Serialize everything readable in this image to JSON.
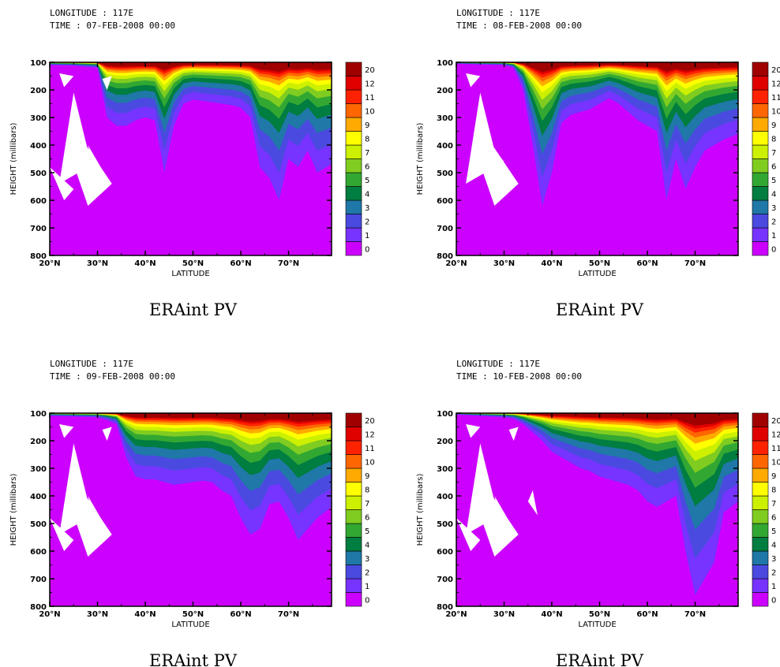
{
  "chart_data": [
    {
      "type": "heatmap",
      "header_line1": "LONGITUDE : 117E",
      "header_line2": "TIME : 07-FEB-2008 00:00",
      "title": "ERAint PV",
      "xlabel": "LATITUDE",
      "ylabel": "HEIGHT (millibars)",
      "x_ticks": [
        "20°N",
        "30°N",
        "40°N",
        "50°N",
        "60°N",
        "70°N"
      ],
      "y_ticks": [
        "100",
        "200",
        "300",
        "400",
        "500",
        "600",
        "700",
        "800"
      ],
      "xlim": [
        20,
        79
      ],
      "ylim": [
        800,
        100
      ],
      "color_levels": [
        "0",
        "1",
        "2",
        "3",
        "4",
        "5",
        "6",
        "7",
        "8",
        "9",
        "10",
        "11",
        "12",
        "20"
      ],
      "tropopause_pressure_by_latitude": {
        "latitude": [
          20,
          25,
          30,
          32,
          34,
          36,
          38,
          40,
          42,
          44,
          46,
          48,
          50,
          52,
          54,
          56,
          58,
          60,
          62,
          64,
          66,
          68,
          70,
          72,
          74,
          76,
          79
        ],
        "pressure_1pvu": [
          110,
          112,
          120,
          300,
          330,
          330,
          310,
          300,
          310,
          500,
          330,
          250,
          235,
          240,
          245,
          250,
          255,
          265,
          300,
          480,
          520,
          600,
          450,
          480,
          420,
          500,
          470
        ]
      },
      "blank_regions_count": 6
    },
    {
      "type": "heatmap",
      "header_line1": "LONGITUDE : 117E",
      "header_line2": "TIME : 08-FEB-2008 00:00",
      "title": "ERAint PV",
      "xlabel": "LATITUDE",
      "ylabel": "HEIGHT (millibars)",
      "x_ticks": [
        "20°N",
        "30°N",
        "40°N",
        "50°N",
        "60°N",
        "70°N"
      ],
      "y_ticks": [
        "100",
        "200",
        "300",
        "400",
        "500",
        "600",
        "700",
        "800"
      ],
      "xlim": [
        20,
        79
      ],
      "ylim": [
        800,
        100
      ],
      "color_levels": [
        "0",
        "1",
        "2",
        "3",
        "4",
        "5",
        "6",
        "7",
        "8",
        "9",
        "10",
        "11",
        "12",
        "20"
      ],
      "tropopause_pressure_by_latitude": {
        "latitude": [
          20,
          25,
          30,
          32,
          34,
          36,
          38,
          40,
          42,
          44,
          46,
          48,
          50,
          52,
          54,
          56,
          58,
          60,
          62,
          64,
          66,
          68,
          70,
          72,
          74,
          76,
          79
        ],
        "pressure_1pvu": [
          105,
          108,
          110,
          120,
          200,
          400,
          620,
          500,
          320,
          290,
          280,
          270,
          250,
          230,
          250,
          280,
          310,
          330,
          350,
          600,
          450,
          560,
          480,
          420,
          400,
          380,
          360
        ]
      },
      "blank_regions_count": 3
    },
    {
      "type": "heatmap",
      "header_line1": "LONGITUDE : 117E",
      "header_line2": "TIME : 09-FEB-2008 00:00",
      "title": "ERAint PV",
      "xlabel": "LATITUDE",
      "ylabel": "HEIGHT (millibars)",
      "x_ticks": [
        "20°N",
        "30°N",
        "40°N",
        "50°N",
        "60°N",
        "70°N"
      ],
      "y_ticks": [
        "100",
        "200",
        "300",
        "400",
        "500",
        "600",
        "700",
        "800"
      ],
      "xlim": [
        20,
        79
      ],
      "ylim": [
        800,
        100
      ],
      "color_levels": [
        "0",
        "1",
        "2",
        "3",
        "4",
        "5",
        "6",
        "7",
        "8",
        "9",
        "10",
        "11",
        "12",
        "20"
      ],
      "tropopause_pressure_by_latitude": {
        "latitude": [
          20,
          25,
          30,
          32,
          34,
          36,
          38,
          40,
          42,
          44,
          46,
          48,
          50,
          52,
          54,
          56,
          58,
          60,
          62,
          64,
          66,
          68,
          70,
          72,
          74,
          76,
          79
        ],
        "pressure_1pvu": [
          110,
          112,
          115,
          125,
          140,
          260,
          330,
          340,
          340,
          350,
          360,
          355,
          350,
          345,
          350,
          380,
          400,
          480,
          540,
          520,
          430,
          420,
          480,
          560,
          520,
          480,
          440
        ]
      },
      "blank_regions_count": 6
    },
    {
      "type": "heatmap",
      "header_line1": "LONGITUDE : 117E",
      "header_line2": "TIME : 10-FEB-2008 00:00",
      "title": "ERAint PV",
      "xlabel": "LATITUDE",
      "ylabel": "HEIGHT (millibars)",
      "x_ticks": [
        "20°N",
        "30°N",
        "40°N",
        "50°N",
        "60°N",
        "70°N"
      ],
      "y_ticks": [
        "100",
        "200",
        "300",
        "400",
        "500",
        "600",
        "700",
        "800"
      ],
      "xlim": [
        20,
        79
      ],
      "ylim": [
        800,
        100
      ],
      "color_levels": [
        "0",
        "1",
        "2",
        "3",
        "4",
        "5",
        "6",
        "7",
        "8",
        "9",
        "10",
        "11",
        "12",
        "20"
      ],
      "tropopause_pressure_by_latitude": {
        "latitude": [
          20,
          25,
          30,
          32,
          34,
          36,
          38,
          40,
          42,
          44,
          46,
          48,
          50,
          52,
          54,
          56,
          58,
          60,
          62,
          64,
          66,
          68,
          70,
          72,
          74,
          76,
          79
        ],
        "pressure_1pvu": [
          105,
          110,
          115,
          120,
          140,
          170,
          200,
          240,
          260,
          280,
          300,
          310,
          330,
          340,
          350,
          360,
          380,
          420,
          440,
          420,
          400,
          600,
          760,
          700,
          640,
          460,
          420
        ]
      },
      "blank_regions_count": 7
    }
  ],
  "colors": {
    "background": "#ffffff",
    "levels": [
      "#cc00ff",
      "#7733ff",
      "#4a4ae0",
      "#1f78a8",
      "#007d40",
      "#32a832",
      "#80cc20",
      "#ccf000",
      "#ffff00",
      "#ffaa00",
      "#ff6600",
      "#ff2200",
      "#e00000",
      "#a00000"
    ]
  }
}
